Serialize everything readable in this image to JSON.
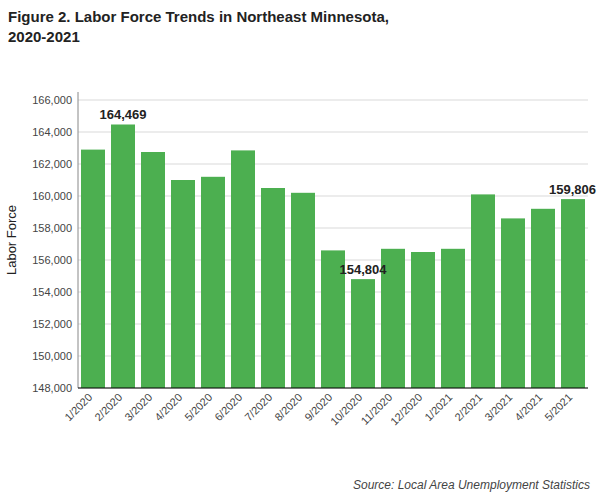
{
  "chart_data": {
    "type": "bar",
    "title": "Figure 2. Labor Force Trends in Northeast Minnesota,",
    "subtitle": "2020-2021",
    "ylabel": "Labor Force",
    "source": "Source: Local Area Unemployment Statistics",
    "categories": [
      "1/2020",
      "2/2020",
      "3/2020",
      "4/2020",
      "5/2020",
      "6/2020",
      "7/2020",
      "8/2020",
      "9/2020",
      "10/2020",
      "11/2020",
      "12/2020",
      "1/2021",
      "2/2021",
      "3/2021",
      "4/2021",
      "5/2021"
    ],
    "values": [
      162900,
      164469,
      162750,
      161000,
      161200,
      162850,
      160500,
      160200,
      156600,
      154804,
      156700,
      156500,
      156700,
      160100,
      158600,
      159200,
      159806
    ],
    "color": "#4CAF50",
    "ylim": [
      148000,
      166500
    ],
    "yticks": [
      {
        "value": 148000,
        "label": "148,000"
      },
      {
        "value": 150000,
        "label": "150,000"
      },
      {
        "value": 152000,
        "label": "152,000"
      },
      {
        "value": 154000,
        "label": "154,000"
      },
      {
        "value": 156000,
        "label": "156,000"
      },
      {
        "value": 158000,
        "label": "158,000"
      },
      {
        "value": 160000,
        "label": "160,000"
      },
      {
        "value": 162000,
        "label": "162,000"
      },
      {
        "value": 164000,
        "label": "164,000"
      },
      {
        "value": 166000,
        "label": "166,000"
      }
    ],
    "grid": true,
    "annotations": [
      {
        "category": "2/2020",
        "value": 164469,
        "label": "164,469"
      },
      {
        "category": "10/2020",
        "value": 154804,
        "label": "154,804"
      },
      {
        "category": "5/2021",
        "value": 159806,
        "label": "159,806"
      }
    ]
  }
}
